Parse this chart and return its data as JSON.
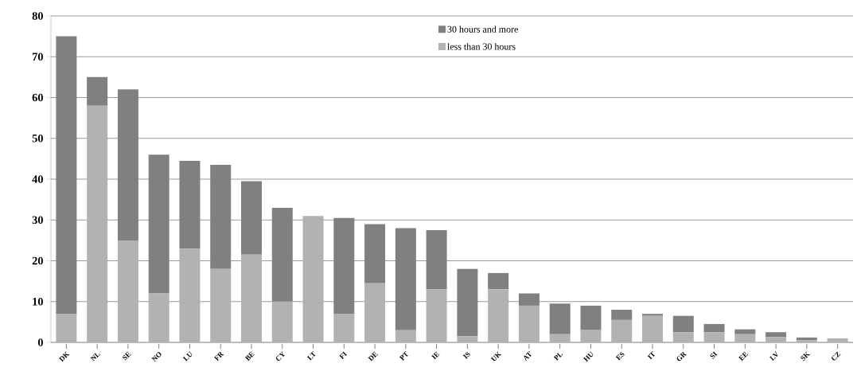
{
  "chart_data": {
    "type": "bar",
    "stacked": true,
    "categories": [
      "DK",
      "NL",
      "SE",
      "NO",
      "LU",
      "FR",
      "BE",
      "CY",
      "LT",
      "FI",
      "DE",
      "PT",
      "IE",
      "IS",
      "UK",
      "AT",
      "PL",
      "HU",
      "ES",
      "IT",
      "GR",
      "SI",
      "EE",
      "LV",
      "SK",
      "CZ"
    ],
    "series": [
      {
        "name": "less than 30 hours",
        "color": "#b2b2b2",
        "values": [
          7,
          58,
          25,
          12,
          23,
          18,
          21.5,
          10,
          31,
          7,
          14.5,
          3,
          13,
          1.5,
          13,
          9,
          2,
          3,
          5.5,
          6.5,
          2.5,
          2.5,
          2,
          1.3,
          0.5,
          1
        ]
      },
      {
        "name": "30 hours and more",
        "color": "#808080",
        "values": [
          68,
          7,
          37,
          34,
          21.5,
          25.5,
          18,
          23,
          0,
          23.5,
          14.5,
          25,
          14.5,
          16.5,
          4,
          3,
          7.5,
          6,
          2.5,
          0.5,
          4,
          2,
          1.2,
          1.2,
          0.7,
          0
        ]
      }
    ],
    "ylim": [
      0,
      80
    ],
    "yticks": [
      0,
      10,
      20,
      30,
      40,
      50,
      60,
      70,
      80
    ],
    "grid": "y",
    "legend": "top right"
  }
}
